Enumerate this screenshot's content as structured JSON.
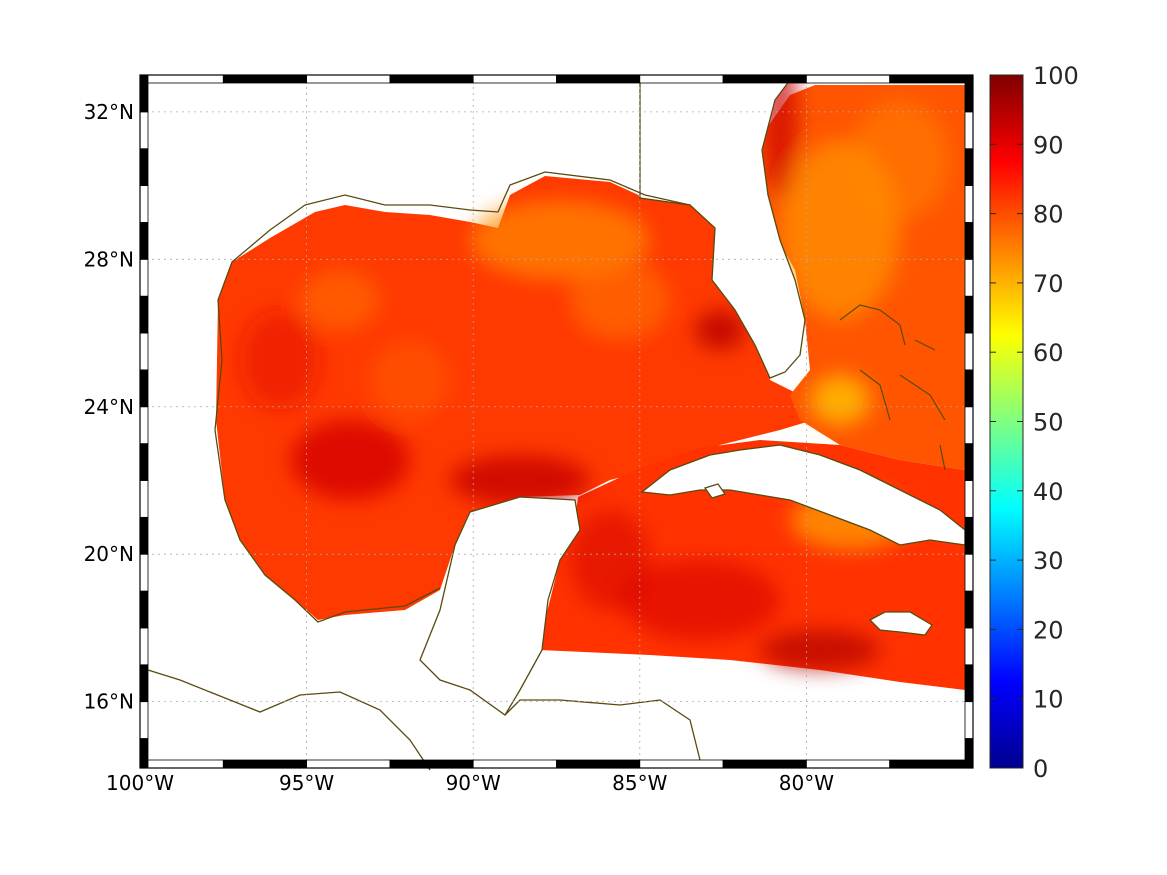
{
  "map": {
    "lon_range": [
      -100,
      -75
    ],
    "lat_range": [
      14.2,
      33
    ],
    "lon_ticks": [
      {
        "value": -100,
        "label": "100°W"
      },
      {
        "value": -95,
        "label": "95°W"
      },
      {
        "value": -90,
        "label": "90°W"
      },
      {
        "value": -85,
        "label": "85°W"
      },
      {
        "value": -80,
        "label": "80°W"
      }
    ],
    "lat_ticks": [
      {
        "value": 32,
        "label": "32°N"
      },
      {
        "value": 28,
        "label": "28°N"
      },
      {
        "value": 24,
        "label": "24°N"
      },
      {
        "value": 20,
        "label": "20°N"
      },
      {
        "value": 16,
        "label": "16°N"
      }
    ],
    "grid": true,
    "coastline_color": "#5a4a10"
  },
  "colorbar": {
    "range": [
      0,
      100
    ],
    "ticks": [
      "0",
      "10",
      "20",
      "30",
      "40",
      "50",
      "60",
      "70",
      "80",
      "90",
      "100"
    ],
    "colormap": "jet"
  }
}
